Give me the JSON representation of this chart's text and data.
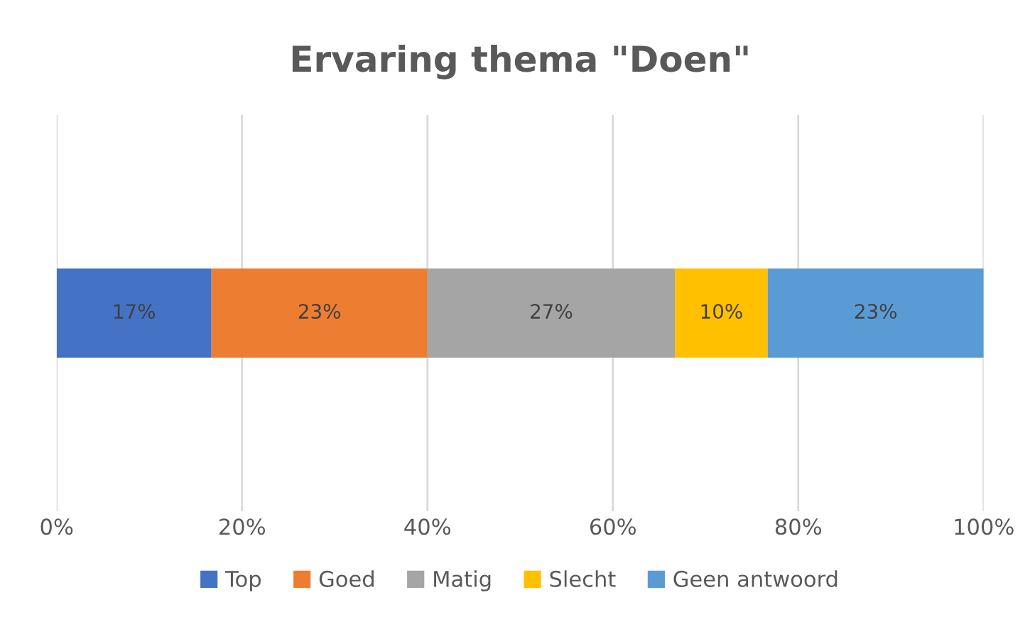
{
  "chart_data": {
    "type": "bar",
    "orientation": "horizontal",
    "stacked": true,
    "title": "Ervaring thema \"Doen\"",
    "categories": [
      null
    ],
    "series": [
      {
        "name": "Top",
        "color": "#4472c4",
        "values": [
          16.7
        ],
        "value_labels": [
          "17%"
        ]
      },
      {
        "name": "Goed",
        "color": "#ed7d31",
        "values": [
          23.3
        ],
        "value_labels": [
          "23%"
        ]
      },
      {
        "name": "Matig",
        "color": "#a5a5a5",
        "values": [
          26.7
        ],
        "value_labels": [
          "27%"
        ]
      },
      {
        "name": "Slecht",
        "color": "#ffc000",
        "values": [
          10
        ],
        "value_labels": [
          "10%"
        ]
      },
      {
        "name": "Geen antwoord",
        "color": "#5b9bd5",
        "values": [
          23.3
        ],
        "value_labels": [
          "23%"
        ]
      }
    ],
    "xlim": [
      0,
      100
    ],
    "xticks": [
      {
        "value": 0,
        "label": "0%"
      },
      {
        "value": 20,
        "label": "20%"
      },
      {
        "value": 40,
        "label": "40%"
      },
      {
        "value": 60,
        "label": "60%"
      },
      {
        "value": 80,
        "label": "80%"
      },
      {
        "value": 100,
        "label": "100%"
      }
    ],
    "grid": "x",
    "legend": "bottom"
  }
}
